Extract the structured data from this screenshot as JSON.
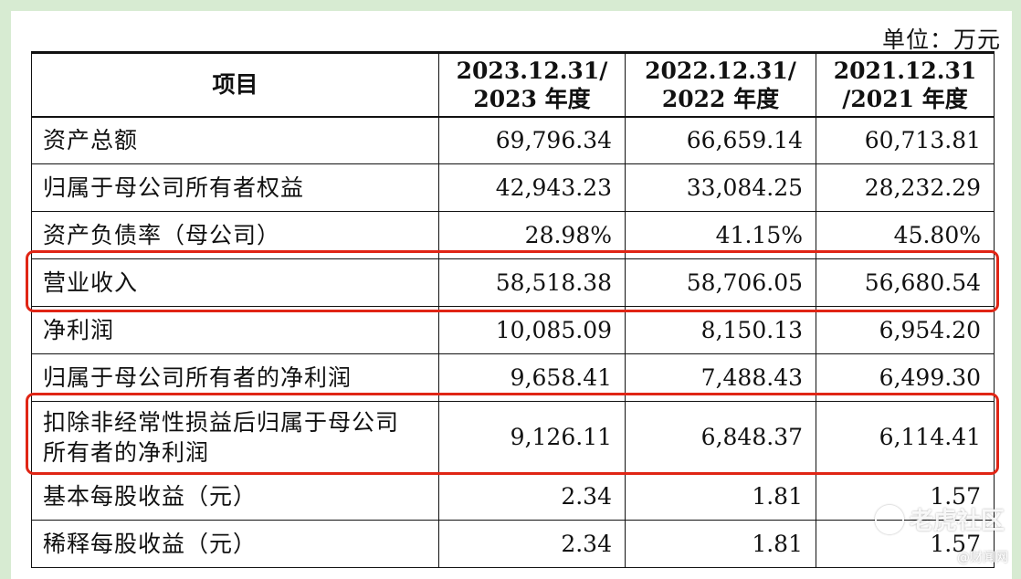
{
  "unit_label": "单位：万元",
  "header": {
    "item": "项目",
    "col1_line1": "2023.12.31/",
    "col1_line2": "2023 年度",
    "col2_line1": "2022.12.31/",
    "col2_line2": "2022 年度",
    "col3_line1": "2021.12.31",
    "col3_line2": "/2021 年度"
  },
  "rows": [
    {
      "label": "资产总额",
      "v2023": "69,796.34",
      "v2022": "66,659.14",
      "v2021": "60,713.81"
    },
    {
      "label": "归属于母公司所有者权益",
      "v2023": "42,943.23",
      "v2022": "33,084.25",
      "v2021": "28,232.29"
    },
    {
      "label": "资产负债率（母公司）",
      "v2023": "28.98%",
      "v2022": "41.15%",
      "v2021": "45.80%"
    },
    {
      "label": "营业收入",
      "v2023": "58,518.38",
      "v2022": "58,706.05",
      "v2021": "56,680.54",
      "highlighted": true
    },
    {
      "label": "净利润",
      "v2023": "10,085.09",
      "v2022": "8,150.13",
      "v2021": "6,954.20"
    },
    {
      "label": "归属于母公司所有者的净利润",
      "v2023": "9,658.41",
      "v2022": "7,488.43",
      "v2021": "6,499.30"
    },
    {
      "label_line1": "扣除非经常性损益后归属于母公司",
      "label_line2": "所有者的净利润",
      "v2023": "9,126.11",
      "v2022": "6,848.37",
      "v2021": "6,114.41",
      "highlighted": true
    },
    {
      "label": "基本每股收益（元）",
      "v2023": "2.34",
      "v2022": "1.81",
      "v2021": "1.57"
    },
    {
      "label": "稀释每股收益（元）",
      "v2023": "2.34",
      "v2022": "1.81",
      "v2021": "1.57"
    }
  ],
  "watermark": "老虎社区",
  "source_credit": "@财闻网",
  "colors": {
    "frame": "#d7ebd2",
    "highlight": "#e02515",
    "border": "#111111"
  }
}
